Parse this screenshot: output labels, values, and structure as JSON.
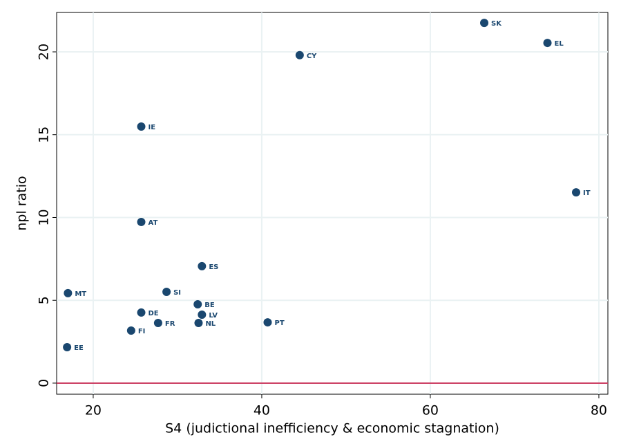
{
  "chart_data": {
    "type": "scatter",
    "x_label": "S4 (judictional inefficiency & economic stagnation)",
    "y_label": "npl ratio",
    "point_labels": [
      "SK",
      "EL",
      "CY",
      "IE",
      "IT",
      "AT",
      "ES",
      "MT",
      "SI",
      "BE",
      "DE",
      "LV",
      "FR",
      "NL",
      "PT",
      "FI",
      "EE"
    ],
    "x": [
      66.4,
      73.9,
      44.5,
      25.7,
      77.3,
      25.7,
      32.9,
      17.0,
      28.7,
      32.4,
      25.7,
      32.9,
      27.7,
      32.5,
      40.7,
      24.5,
      16.9
    ],
    "values": [
      21.75,
      20.54,
      19.8,
      15.49,
      11.52,
      9.73,
      7.06,
      5.43,
      5.51,
      4.76,
      4.26,
      4.13,
      3.63,
      3.63,
      3.67,
      3.17,
      2.17
    ],
    "color": "#1a476f",
    "xlim": [
      15.66,
      81.07
    ],
    "ylim": [
      -0.67,
      22.38
    ],
    "xticks": [
      20,
      40,
      60,
      80
    ],
    "yticks": [
      0,
      5,
      10,
      15,
      20
    ],
    "grid": true,
    "hline": 0,
    "hline_color": "#c10534"
  }
}
